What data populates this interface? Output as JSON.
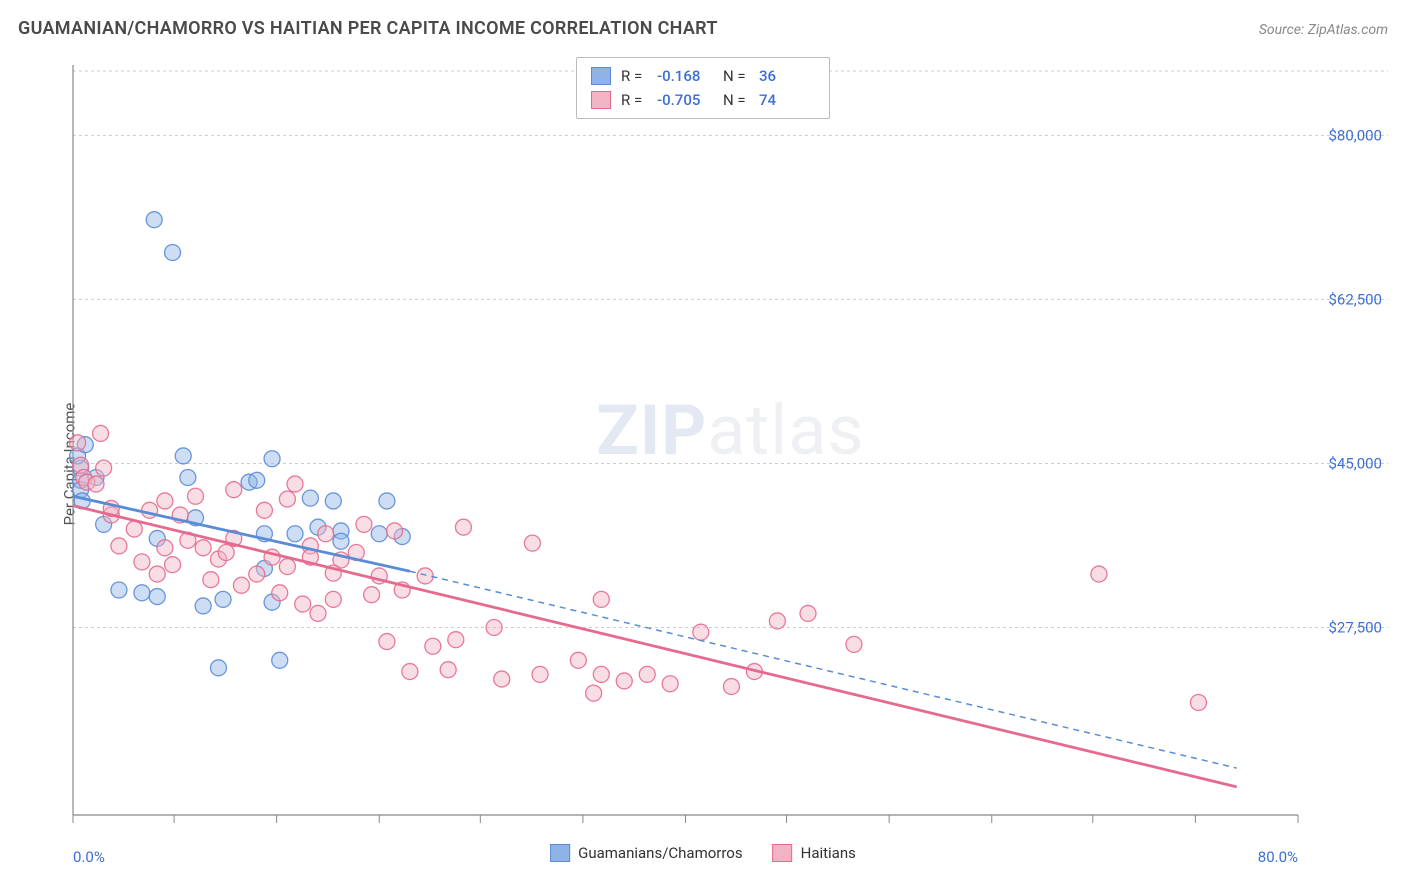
{
  "title": "GUAMANIAN/CHAMORRO VS HAITIAN PER CAPITA INCOME CORRELATION CHART",
  "source": "Source: ZipAtlas.com",
  "watermark": {
    "bold": "ZIP",
    "light": "atlas"
  },
  "ylabel": "Per Capita Income",
  "chart": {
    "type": "scatter",
    "xlim": [
      0,
      80
    ],
    "ylim": [
      7500,
      87500
    ],
    "x_ticks_minor": [
      0,
      6.6,
      13.3,
      20,
      26.6,
      33.3,
      40,
      46.6,
      53.3,
      60,
      66.6,
      73.3,
      80
    ],
    "y_ticks": [
      27500,
      45000,
      62500,
      80000
    ],
    "y_tick_labels": [
      "$27,500",
      "$45,000",
      "$62,500",
      "$80,000"
    ],
    "x_axis_labels": {
      "left": "0.0%",
      "right": "80.0%"
    },
    "background_color": "#ffffff",
    "grid_color": "#cccccc",
    "axis_color": "#888888",
    "label_color": "#3b6fd6",
    "point_radius": 8,
    "series": [
      {
        "key": "guamanian",
        "label": "Guamanians/Chamorros",
        "fill": "#8fb3e6",
        "stroke": "#5a8cd6",
        "R": "-0.168",
        "N": "36",
        "trend": {
          "x1": 0,
          "y1": 41500,
          "x2": 22,
          "y2": 33500,
          "ext_x2": 76,
          "ext_y2": 12500
        },
        "points": [
          [
            0.5,
            44500
          ],
          [
            0.5,
            43200
          ],
          [
            0.5,
            42200
          ],
          [
            0.3,
            45800
          ],
          [
            0.6,
            41000
          ],
          [
            5.3,
            71000
          ],
          [
            6.5,
            67500
          ],
          [
            4.5,
            31200
          ],
          [
            5.5,
            30800
          ],
          [
            3.0,
            31500
          ],
          [
            7.2,
            45800
          ],
          [
            7.5,
            43500
          ],
          [
            8.5,
            29800
          ],
          [
            9.8,
            30500
          ],
          [
            9.5,
            23200
          ],
          [
            11.5,
            43000
          ],
          [
            12.0,
            43200
          ],
          [
            12.5,
            37500
          ],
          [
            13.0,
            45500
          ],
          [
            12.5,
            33800
          ],
          [
            14.5,
            37500
          ],
          [
            13.0,
            30200
          ],
          [
            13.5,
            24000
          ],
          [
            15.5,
            41300
          ],
          [
            17.0,
            41000
          ],
          [
            17.5,
            37800
          ],
          [
            16.0,
            38200
          ],
          [
            17.5,
            36700
          ],
          [
            20.0,
            37500
          ],
          [
            20.5,
            41000
          ],
          [
            21.5,
            37200
          ],
          [
            8.0,
            39200
          ],
          [
            5.5,
            37000
          ],
          [
            2.0,
            38500
          ],
          [
            1.5,
            43500
          ],
          [
            0.8,
            47000
          ]
        ]
      },
      {
        "key": "haitian",
        "label": "Haitians",
        "fill": "#f2b3c4",
        "stroke": "#e56b8e",
        "R": "-0.705",
        "N": "74",
        "trend": {
          "x1": 0,
          "y1": 40500,
          "x2": 76,
          "y2": 10500,
          "ext_x2": 76,
          "ext_y2": 10500
        },
        "points": [
          [
            0.5,
            44800
          ],
          [
            0.7,
            43500
          ],
          [
            0.9,
            43000
          ],
          [
            1.5,
            42800
          ],
          [
            0.3,
            47200
          ],
          [
            2.5,
            39500
          ],
          [
            2.0,
            44500
          ],
          [
            1.8,
            48200
          ],
          [
            5.0,
            40000
          ],
          [
            6.0,
            41000
          ],
          [
            7.0,
            39500
          ],
          [
            8.0,
            41500
          ],
          [
            6.5,
            34200
          ],
          [
            8.5,
            36000
          ],
          [
            9.5,
            34800
          ],
          [
            10.5,
            37000
          ],
          [
            12.0,
            33200
          ],
          [
            13.0,
            35000
          ],
          [
            14.0,
            34000
          ],
          [
            14.0,
            41200
          ],
          [
            14.5,
            42800
          ],
          [
            15.5,
            36200
          ],
          [
            16.5,
            37500
          ],
          [
            17.5,
            34700
          ],
          [
            18.5,
            35500
          ],
          [
            15.0,
            30000
          ],
          [
            16.0,
            29000
          ],
          [
            17.0,
            30500
          ],
          [
            15.5,
            35000
          ],
          [
            19.0,
            38500
          ],
          [
            21.0,
            37800
          ],
          [
            20.0,
            33000
          ],
          [
            21.5,
            31500
          ],
          [
            20.5,
            26000
          ],
          [
            22.0,
            22800
          ],
          [
            23.5,
            25500
          ],
          [
            24.5,
            23000
          ],
          [
            25.0,
            26200
          ],
          [
            25.5,
            38200
          ],
          [
            27.5,
            27500
          ],
          [
            28.0,
            22000
          ],
          [
            30.5,
            22500
          ],
          [
            30.0,
            36500
          ],
          [
            33.0,
            24000
          ],
          [
            34.0,
            20500
          ],
          [
            34.5,
            22500
          ],
          [
            34.5,
            30500
          ],
          [
            36.0,
            21800
          ],
          [
            37.5,
            22500
          ],
          [
            39.0,
            21500
          ],
          [
            41.0,
            27000
          ],
          [
            43.0,
            21200
          ],
          [
            44.5,
            22800
          ],
          [
            46.0,
            28200
          ],
          [
            48.0,
            29000
          ],
          [
            51.0,
            25700
          ],
          [
            67.0,
            33200
          ],
          [
            73.5,
            19500
          ],
          [
            4.5,
            34500
          ],
          [
            3.0,
            36200
          ],
          [
            5.5,
            33200
          ],
          [
            9.0,
            32600
          ],
          [
            11.0,
            32000
          ],
          [
            13.5,
            31200
          ],
          [
            10.0,
            35500
          ],
          [
            7.5,
            36800
          ],
          [
            6.0,
            36000
          ],
          [
            4.0,
            38000
          ],
          [
            2.5,
            40200
          ],
          [
            17.0,
            33300
          ],
          [
            19.5,
            31000
          ],
          [
            23.0,
            33000
          ],
          [
            12.5,
            40000
          ],
          [
            10.5,
            42200
          ]
        ]
      }
    ]
  },
  "legend_top": {
    "R_label": "R =",
    "N_label": "N ="
  }
}
